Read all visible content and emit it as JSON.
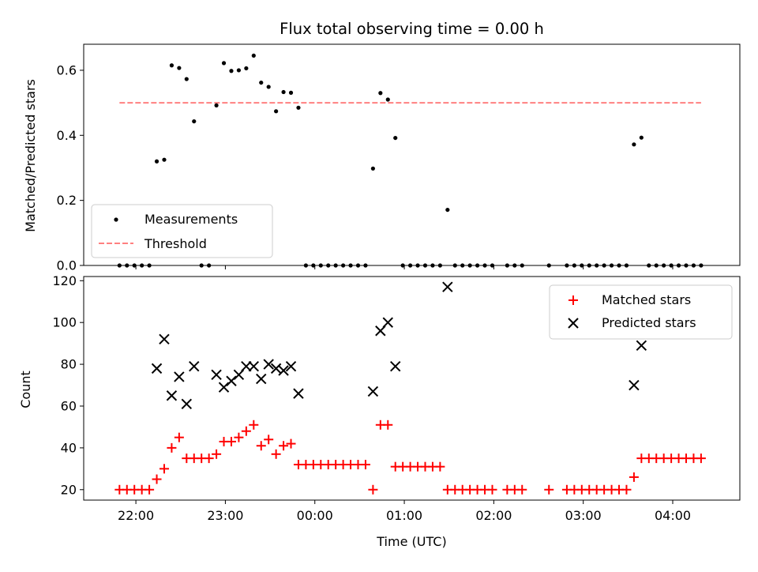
{
  "chart_data": [
    {
      "type": "scatter",
      "title": "Flux total observing time = 0.00 h",
      "xlabel": "",
      "ylabel": "Matched/Predicted stars",
      "ylim": [
        0,
        0.68
      ],
      "yticks": [
        "0.0",
        "0.2",
        "0.4",
        "0.6"
      ],
      "yticks_values": [
        0,
        0.2,
        0.4,
        0.6
      ],
      "grid": false,
      "legend_position": "lower-left",
      "series": [
        {
          "name": "Measurements",
          "kind": "scatter",
          "color": "#000000",
          "points": [
            [
              "21:49",
              0
            ],
            [
              "21:54",
              0
            ],
            [
              "21:59",
              0
            ],
            [
              "22:04",
              0
            ],
            [
              "22:09",
              0
            ],
            [
              "22:14",
              0.32
            ],
            [
              "22:19",
              0.325
            ],
            [
              "22:24",
              0.615
            ],
            [
              "22:29",
              0.607
            ],
            [
              "22:34",
              0.573
            ],
            [
              "22:39",
              0.443
            ],
            [
              "22:44",
              0
            ],
            [
              "22:49",
              0
            ],
            [
              "22:54",
              0.492
            ],
            [
              "22:59",
              0.622
            ],
            [
              "23:04",
              0.598
            ],
            [
              "23:09",
              0.6
            ],
            [
              "23:14",
              0.606
            ],
            [
              "23:19",
              0.645
            ],
            [
              "23:24",
              0.562
            ],
            [
              "23:29",
              0.549
            ],
            [
              "23:34",
              0.474
            ],
            [
              "23:39",
              0.533
            ],
            [
              "23:44",
              0.531
            ],
            [
              "23:49",
              0.485
            ],
            [
              "23:54",
              0
            ],
            [
              "23:59",
              0
            ],
            [
              "00:04",
              0
            ],
            [
              "00:09",
              0
            ],
            [
              "00:14",
              0
            ],
            [
              "00:19",
              0
            ],
            [
              "00:24",
              0
            ],
            [
              "00:29",
              0
            ],
            [
              "00:34",
              0
            ],
            [
              "00:39",
              0.298
            ],
            [
              "00:44",
              0.53
            ],
            [
              "00:49",
              0.51
            ],
            [
              "00:54",
              0.392
            ],
            [
              "00:59",
              0
            ],
            [
              "01:04",
              0
            ],
            [
              "01:09",
              0
            ],
            [
              "01:14",
              0
            ],
            [
              "01:19",
              0
            ],
            [
              "01:24",
              0
            ],
            [
              "01:29",
              0.171
            ],
            [
              "01:34",
              0
            ],
            [
              "01:39",
              0
            ],
            [
              "01:44",
              0
            ],
            [
              "01:49",
              0
            ],
            [
              "01:54",
              0
            ],
            [
              "01:59",
              0
            ],
            [
              "02:09",
              0
            ],
            [
              "02:14",
              0
            ],
            [
              "02:19",
              0
            ],
            [
              "02:37",
              0
            ],
            [
              "02:49",
              0
            ],
            [
              "02:54",
              0
            ],
            [
              "02:59",
              0
            ],
            [
              "03:04",
              0
            ],
            [
              "03:09",
              0
            ],
            [
              "03:14",
              0
            ],
            [
              "03:19",
              0
            ],
            [
              "03:24",
              0
            ],
            [
              "03:29",
              0
            ],
            [
              "03:34",
              0.372
            ],
            [
              "03:39",
              0.393
            ],
            [
              "03:44",
              0
            ],
            [
              "03:49",
              0
            ],
            [
              "03:54",
              0
            ],
            [
              "03:59",
              0
            ],
            [
              "04:04",
              0
            ],
            [
              "04:09",
              0
            ],
            [
              "04:14",
              0
            ],
            [
              "04:19",
              0
            ]
          ]
        },
        {
          "name": "Threshold",
          "kind": "line",
          "style": "dashed",
          "color": "#ff8080",
          "points": [
            [
              "21:49",
              0.5
            ],
            [
              "04:19",
              0.5
            ]
          ]
        }
      ]
    },
    {
      "type": "scatter",
      "title": "",
      "xlabel": "Time (UTC)",
      "ylabel": "Count",
      "ylim": [
        15,
        122
      ],
      "yticks": [
        "20",
        "40",
        "60",
        "80",
        "100",
        "120"
      ],
      "yticks_values": [
        20,
        40,
        60,
        80,
        100,
        120
      ],
      "xlim": [
        "21:25",
        "04:45"
      ],
      "xticks": [
        "22:00",
        "23:00",
        "00:00",
        "01:00",
        "02:00",
        "03:00",
        "04:00"
      ],
      "grid": false,
      "legend_position": "upper-right",
      "series": [
        {
          "name": "Matched stars",
          "marker": "plus",
          "color": "#ff0000",
          "points": [
            [
              "21:49",
              20
            ],
            [
              "21:54",
              20
            ],
            [
              "21:59",
              20
            ],
            [
              "22:04",
              20
            ],
            [
              "22:09",
              20
            ],
            [
              "22:14",
              25
            ],
            [
              "22:19",
              30
            ],
            [
              "22:24",
              40
            ],
            [
              "22:29",
              45
            ],
            [
              "22:34",
              35
            ],
            [
              "22:39",
              35
            ],
            [
              "22:44",
              35
            ],
            [
              "22:49",
              35
            ],
            [
              "22:54",
              37
            ],
            [
              "22:59",
              43
            ],
            [
              "23:04",
              43
            ],
            [
              "23:09",
              45
            ],
            [
              "23:14",
              48
            ],
            [
              "23:19",
              51
            ],
            [
              "23:24",
              41
            ],
            [
              "23:29",
              44
            ],
            [
              "23:34",
              37
            ],
            [
              "23:39",
              41
            ],
            [
              "23:44",
              42
            ],
            [
              "23:49",
              32
            ],
            [
              "23:54",
              32
            ],
            [
              "23:59",
              32
            ],
            [
              "00:04",
              32
            ],
            [
              "00:09",
              32
            ],
            [
              "00:14",
              32
            ],
            [
              "00:19",
              32
            ],
            [
              "00:24",
              32
            ],
            [
              "00:29",
              32
            ],
            [
              "00:34",
              32
            ],
            [
              "00:39",
              20
            ],
            [
              "00:44",
              51
            ],
            [
              "00:49",
              51
            ],
            [
              "00:54",
              31
            ],
            [
              "00:59",
              31
            ],
            [
              "01:04",
              31
            ],
            [
              "01:09",
              31
            ],
            [
              "01:14",
              31
            ],
            [
              "01:19",
              31
            ],
            [
              "01:24",
              31
            ],
            [
              "01:29",
              20
            ],
            [
              "01:34",
              20
            ],
            [
              "01:39",
              20
            ],
            [
              "01:44",
              20
            ],
            [
              "01:49",
              20
            ],
            [
              "01:54",
              20
            ],
            [
              "01:59",
              20
            ],
            [
              "02:09",
              20
            ],
            [
              "02:14",
              20
            ],
            [
              "02:19",
              20
            ],
            [
              "02:37",
              20
            ],
            [
              "02:49",
              20
            ],
            [
              "02:54",
              20
            ],
            [
              "02:59",
              20
            ],
            [
              "03:04",
              20
            ],
            [
              "03:09",
              20
            ],
            [
              "03:14",
              20
            ],
            [
              "03:19",
              20
            ],
            [
              "03:24",
              20
            ],
            [
              "03:29",
              20
            ],
            [
              "03:34",
              26
            ],
            [
              "03:39",
              35
            ],
            [
              "03:44",
              35
            ],
            [
              "03:49",
              35
            ],
            [
              "03:54",
              35
            ],
            [
              "03:59",
              35
            ],
            [
              "04:04",
              35
            ],
            [
              "04:09",
              35
            ],
            [
              "04:14",
              35
            ],
            [
              "04:19",
              35
            ]
          ]
        },
        {
          "name": "Predicted stars",
          "marker": "x",
          "color": "#000000",
          "points": [
            [
              "22:14",
              78
            ],
            [
              "22:19",
              92
            ],
            [
              "22:24",
              65
            ],
            [
              "22:29",
              74
            ],
            [
              "22:34",
              61
            ],
            [
              "22:39",
              79
            ],
            [
              "22:54",
              75
            ],
            [
              "22:59",
              69
            ],
            [
              "23:04",
              72
            ],
            [
              "23:09",
              75
            ],
            [
              "23:14",
              79
            ],
            [
              "23:19",
              79
            ],
            [
              "23:24",
              73
            ],
            [
              "23:29",
              80
            ],
            [
              "23:34",
              78
            ],
            [
              "23:39",
              77
            ],
            [
              "23:44",
              79
            ],
            [
              "23:49",
              66
            ],
            [
              "00:39",
              67
            ],
            [
              "00:44",
              96
            ],
            [
              "00:49",
              100
            ],
            [
              "00:54",
              79
            ],
            [
              "01:29",
              117
            ],
            [
              "03:34",
              70
            ],
            [
              "03:39",
              89
            ]
          ]
        }
      ]
    }
  ]
}
